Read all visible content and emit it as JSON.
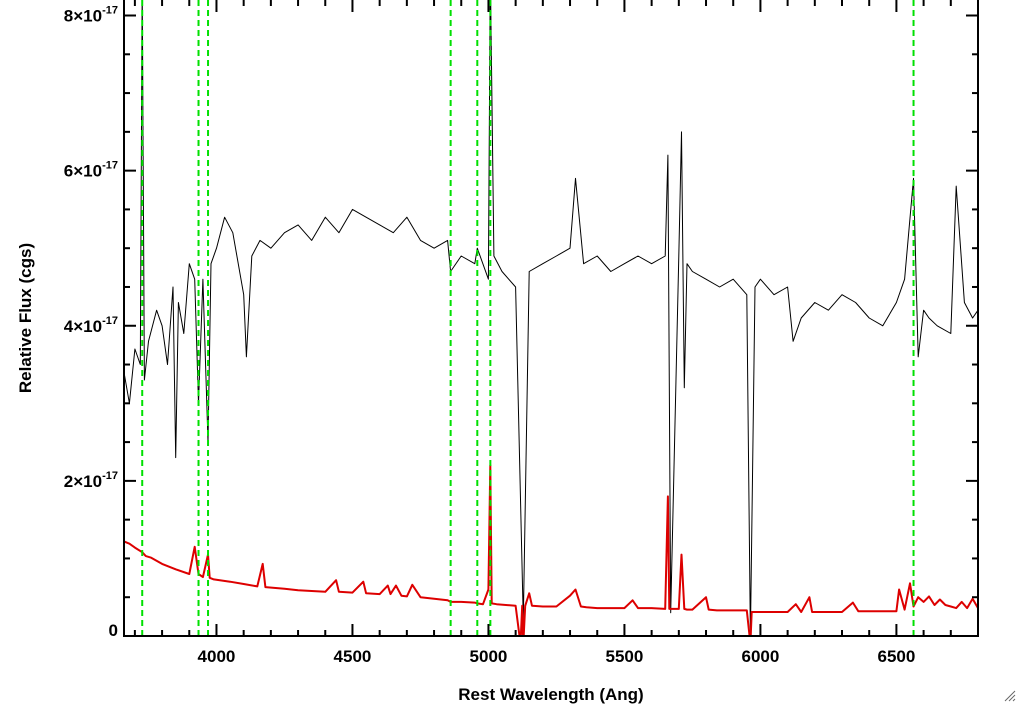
{
  "chart_data": {
    "type": "line",
    "title": "",
    "xlabel": "Rest Wavelength (Ang)",
    "ylabel": "Relative Flux (cgs)",
    "xlim": [
      3660,
      6800
    ],
    "ylim": [
      0,
      8.2e-17
    ],
    "x_ticks": [
      {
        "value": 4000,
        "label": "4000"
      },
      {
        "value": 4500,
        "label": "4500"
      },
      {
        "value": 5000,
        "label": "5000"
      },
      {
        "value": 5500,
        "label": "5500"
      },
      {
        "value": 6000,
        "label": "6000"
      },
      {
        "value": 6500,
        "label": "6500"
      }
    ],
    "y_ticks": [
      {
        "value": 0,
        "mantissa": "0",
        "exponent": ""
      },
      {
        "value": 2e-17,
        "mantissa": "2×10",
        "exponent": "-17"
      },
      {
        "value": 4e-17,
        "mantissa": "4×10",
        "exponent": "-17"
      },
      {
        "value": 6e-17,
        "mantissa": "6×10",
        "exponent": "-17"
      },
      {
        "value": 8e-17,
        "mantissa": "8×10",
        "exponent": "-17"
      }
    ],
    "grid": false,
    "legend": "none",
    "vlines": {
      "color": "#00e000",
      "style": "dashed",
      "x": [
        3727,
        3934,
        3969,
        4861,
        4959,
        5007,
        6563
      ]
    },
    "series": [
      {
        "color": "#000000",
        "units": "1e-17",
        "x": [
          3660,
          3680,
          3700,
          3720,
          3727,
          3735,
          3750,
          3780,
          3800,
          3820,
          3840,
          3850,
          3860,
          3880,
          3900,
          3920,
          3934,
          3950,
          3969,
          3980,
          4000,
          4030,
          4060,
          4100,
          4110,
          4130,
          4160,
          4200,
          4250,
          4300,
          4350,
          4400,
          4450,
          4500,
          4550,
          4600,
          4650,
          4700,
          4750,
          4800,
          4850,
          4861,
          4900,
          4950,
          4959,
          5000,
          5007,
          5020,
          5050,
          5100,
          5128,
          5150,
          5200,
          5250,
          5300,
          5320,
          5350,
          5400,
          5450,
          5500,
          5550,
          5600,
          5650,
          5660,
          5670,
          5700,
          5710,
          5720,
          5730,
          5750,
          5800,
          5850,
          5900,
          5950,
          5963,
          5980,
          6000,
          6050,
          6100,
          6120,
          6150,
          6200,
          6250,
          6300,
          6350,
          6400,
          6450,
          6500,
          6530,
          6563,
          6580,
          6600,
          6620,
          6650,
          6700,
          6720,
          6750,
          6780,
          6800
        ],
        "y": [
          3.4,
          3.0,
          3.7,
          3.5,
          8.4,
          3.3,
          3.8,
          4.2,
          4.0,
          3.5,
          4.5,
          2.3,
          4.3,
          3.9,
          4.8,
          4.6,
          3.0,
          4.6,
          2.5,
          4.8,
          5.0,
          5.4,
          5.2,
          4.4,
          3.6,
          4.9,
          5.1,
          5.0,
          5.2,
          5.3,
          5.1,
          5.4,
          5.2,
          5.5,
          5.4,
          5.3,
          5.2,
          5.4,
          5.1,
          5.0,
          5.1,
          4.7,
          4.9,
          4.8,
          5.0,
          4.6,
          8.6,
          4.9,
          4.7,
          4.5,
          0.2,
          4.7,
          4.8,
          4.9,
          5.0,
          5.9,
          4.8,
          4.9,
          4.7,
          4.8,
          4.9,
          4.8,
          4.9,
          6.2,
          0.3,
          4.9,
          6.5,
          3.2,
          4.8,
          4.7,
          4.6,
          4.5,
          4.6,
          4.4,
          0.0,
          4.5,
          4.6,
          4.4,
          4.5,
          3.8,
          4.1,
          4.3,
          4.2,
          4.4,
          4.3,
          4.1,
          4.0,
          4.3,
          4.6,
          5.9,
          3.6,
          4.2,
          4.1,
          4.0,
          3.9,
          5.8,
          4.3,
          4.1,
          4.2
        ]
      },
      {
        "color": "#dd0000",
        "units": "1e-17",
        "x": [
          3660,
          3680,
          3700,
          3727,
          3740,
          3760,
          3800,
          3850,
          3900,
          3920,
          3934,
          3950,
          3969,
          3975,
          3990,
          4050,
          4100,
          4150,
          4170,
          4180,
          4250,
          4300,
          4350,
          4400,
          4440,
          4450,
          4500,
          4540,
          4550,
          4600,
          4630,
          4640,
          4660,
          4680,
          4700,
          4720,
          4750,
          4800,
          4850,
          4861,
          4900,
          4950,
          4959,
          4980,
          5000,
          5007,
          5012,
          5030,
          5100,
          5118,
          5124,
          5128,
          5135,
          5150,
          5160,
          5200,
          5250,
          5300,
          5320,
          5340,
          5360,
          5400,
          5450,
          5500,
          5530,
          5550,
          5600,
          5650,
          5660,
          5665,
          5675,
          5700,
          5710,
          5720,
          5730,
          5750,
          5800,
          5810,
          5840,
          5900,
          5950,
          5963,
          5968,
          5990,
          6050,
          6100,
          6130,
          6150,
          6180,
          6190,
          6200,
          6250,
          6300,
          6340,
          6360,
          6400,
          6450,
          6500,
          6510,
          6530,
          6550,
          6563,
          6580,
          6600,
          6620,
          6640,
          6660,
          6680,
          6700,
          6720,
          6740,
          6760,
          6780,
          6800
        ],
        "y": [
          1.22,
          1.19,
          1.14,
          1.08,
          1.03,
          1.01,
          0.93,
          0.86,
          0.8,
          1.15,
          0.8,
          0.76,
          1.05,
          0.75,
          0.73,
          0.7,
          0.67,
          0.64,
          0.93,
          0.63,
          0.61,
          0.59,
          0.58,
          0.57,
          0.72,
          0.57,
          0.56,
          0.7,
          0.55,
          0.54,
          0.65,
          0.54,
          0.65,
          0.52,
          0.51,
          0.66,
          0.5,
          0.48,
          0.46,
          0.44,
          0.44,
          0.43,
          0.42,
          0.41,
          0.6,
          2.2,
          0.42,
          0.41,
          0.39,
          -0.1,
          0.39,
          -0.1,
          0.39,
          0.55,
          0.39,
          0.38,
          0.38,
          0.52,
          0.6,
          0.38,
          0.37,
          0.36,
          0.36,
          0.36,
          0.46,
          0.36,
          0.36,
          0.35,
          1.8,
          0.35,
          0.35,
          0.35,
          1.05,
          0.35,
          0.34,
          0.34,
          0.5,
          0.34,
          0.33,
          0.33,
          0.33,
          -0.1,
          0.31,
          0.31,
          0.31,
          0.31,
          0.41,
          0.31,
          0.5,
          0.31,
          0.31,
          0.31,
          0.31,
          0.43,
          0.32,
          0.32,
          0.32,
          0.32,
          0.6,
          0.34,
          0.68,
          0.38,
          0.5,
          0.44,
          0.51,
          0.4,
          0.47,
          0.4,
          0.38,
          0.36,
          0.44,
          0.36,
          0.48,
          0.36
        ]
      }
    ]
  }
}
